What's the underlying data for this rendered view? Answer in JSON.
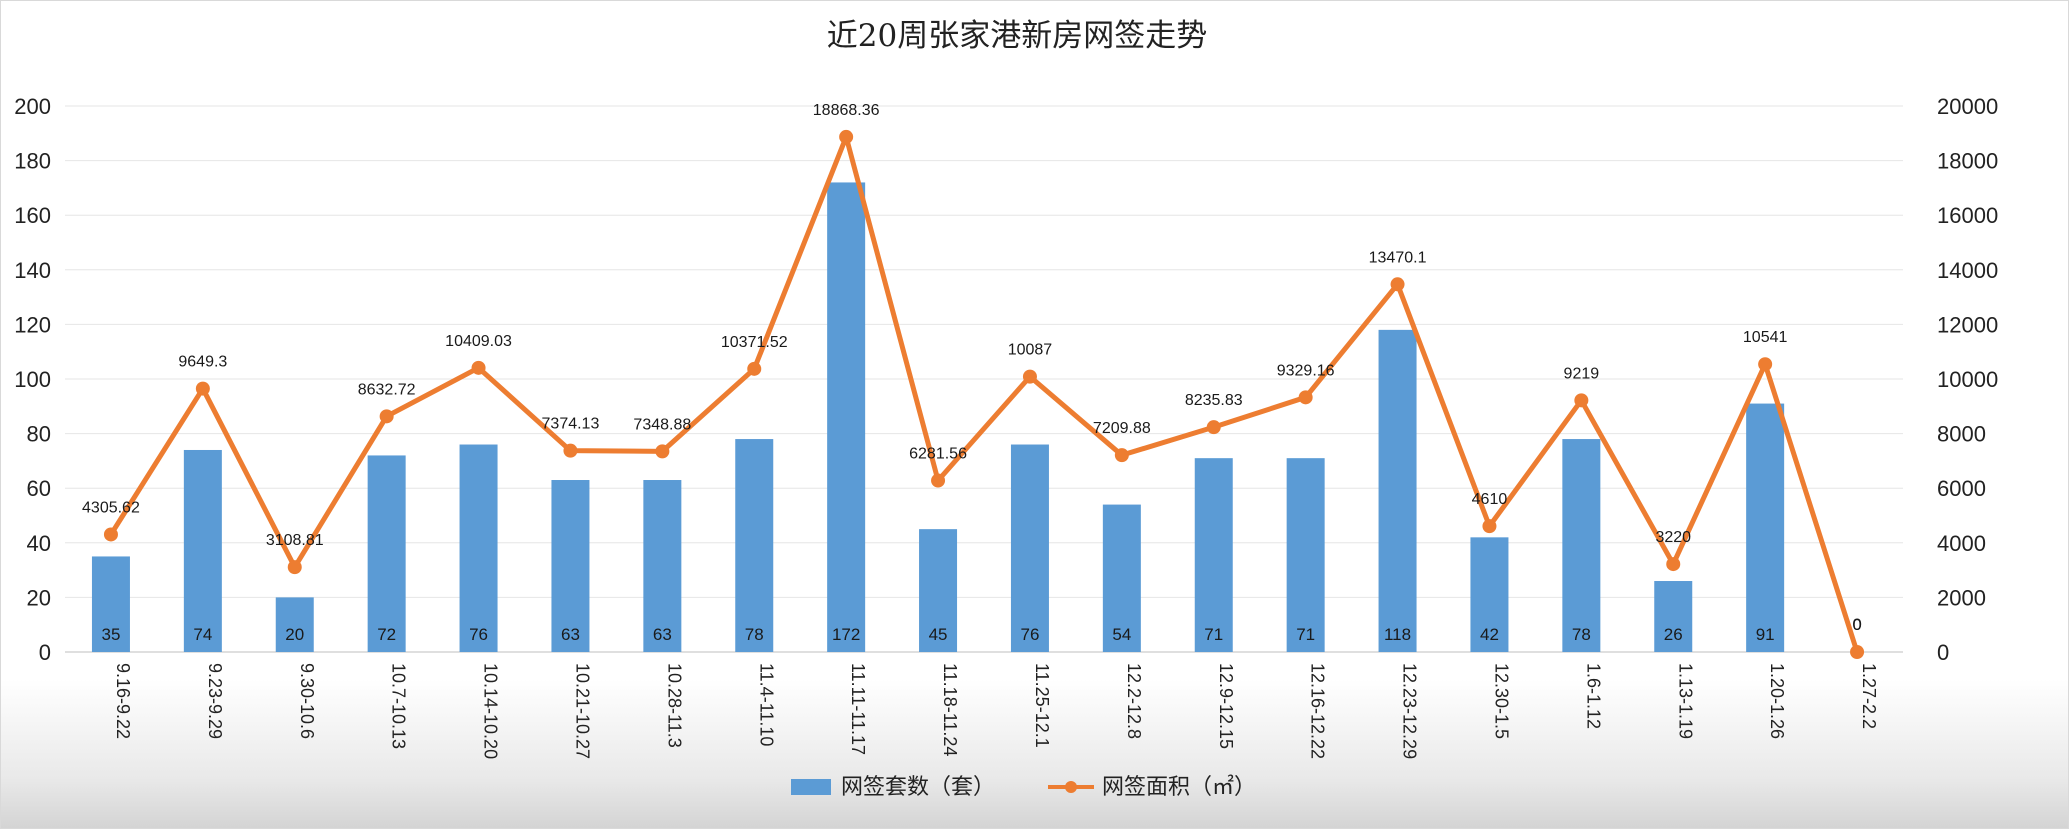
{
  "chart_data": {
    "type": "bar+line",
    "title": "近20周张家港新房网签走势",
    "categories": [
      "9.16-9.22",
      "9.23-9.29",
      "9.30-10.6",
      "10.7-10.13",
      "10.14-10.20",
      "10.21-10.27",
      "10.28-11.3",
      "11.4-11.10",
      "11.11-11.17",
      "11.18-11.24",
      "11.25-12.1",
      "12.2-12.8",
      "12.9-12.15",
      "12.16-12.22",
      "12.23-12.29",
      "12.30-1.5",
      "1.6-1.12",
      "1.13-1.19",
      "1.20-1.26",
      "1.27-2.2"
    ],
    "series": [
      {
        "name": "网签套数（套）",
        "type": "bar",
        "axis": "left",
        "color": "#5b9bd5",
        "values": [
          35,
          74,
          20,
          72,
          76,
          63,
          63,
          78,
          172,
          45,
          76,
          54,
          71,
          71,
          118,
          42,
          78,
          26,
          91,
          0
        ],
        "labels": [
          "35",
          "74",
          "20",
          "72",
          "76",
          "63",
          "63",
          "78",
          "172",
          "45",
          "76",
          "54",
          "71",
          "71",
          "118",
          "42",
          "78",
          "26",
          "91",
          "0"
        ]
      },
      {
        "name": "网签面积（㎡）",
        "type": "line",
        "axis": "right",
        "color": "#ed7d31",
        "values": [
          4305.62,
          9649.3,
          3108.81,
          8632.72,
          10409.03,
          7374.13,
          7348.88,
          10371.52,
          18868.36,
          6281.56,
          10087,
          7209.88,
          8235.83,
          9329.16,
          13470.1,
          4610,
          9219,
          3220,
          10541,
          0
        ],
        "labels": [
          "4305.62",
          "9649.3",
          "3108.81",
          "8632.72",
          "10409.03",
          "7374.13",
          "7348.88",
          "10371.52",
          "18868.36",
          "6281.56",
          "10087",
          "7209.88",
          "8235.83",
          "9329.16",
          "13470.1",
          "4610",
          "9219",
          "3220",
          "10541",
          "0"
        ]
      }
    ],
    "y_left": {
      "lim": [
        0,
        200
      ],
      "ticks": [
        "0",
        "20",
        "40",
        "60",
        "80",
        "100",
        "120",
        "140",
        "160",
        "180",
        "200"
      ]
    },
    "y_right": {
      "lim": [
        0,
        20000
      ],
      "ticks": [
        "0",
        "2000",
        "4000",
        "6000",
        "8000",
        "10000",
        "12000",
        "14000",
        "16000",
        "18000",
        "20000"
      ]
    },
    "grid": true,
    "legend_position": "bottom"
  }
}
